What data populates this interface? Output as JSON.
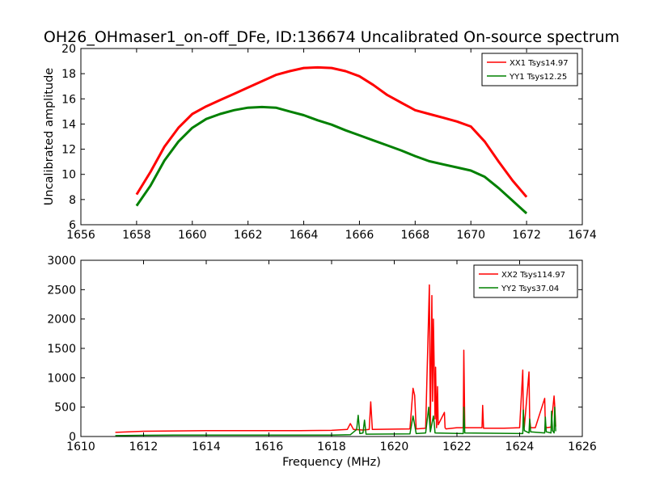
{
  "chart_data": [
    {
      "type": "line",
      "title": "OH26_OHmaser1_on-off_DFe, ID:136674 Uncalibrated On-source spectrum",
      "xlabel": "",
      "ylabel": "Uncalibrated amplitude",
      "xlim": [
        1656,
        1674
      ],
      "ylim": [
        6,
        20
      ],
      "xticks": [
        "1656",
        "1658",
        "1660",
        "1662",
        "1664",
        "1666",
        "1668",
        "1670",
        "1672",
        "1674"
      ],
      "yticks": [
        "6",
        "8",
        "10",
        "12",
        "14",
        "16",
        "18",
        "20"
      ],
      "grid": false,
      "legend_position": "top-right",
      "series": [
        {
          "name": "XX1 Tsys14.97",
          "color": "#ff0000",
          "x": [
            1658.0,
            1658.5,
            1659.0,
            1659.5,
            1660.0,
            1660.5,
            1661.0,
            1661.5,
            1662.0,
            1662.5,
            1663.0,
            1663.5,
            1664.0,
            1664.5,
            1665.0,
            1665.5,
            1666.0,
            1666.5,
            1667.0,
            1667.5,
            1668.0,
            1668.5,
            1669.0,
            1669.5,
            1670.0,
            1670.5,
            1671.0,
            1671.5,
            1672.0
          ],
          "y": [
            8.4,
            10.2,
            12.2,
            13.7,
            14.8,
            15.4,
            15.9,
            16.4,
            16.9,
            17.4,
            17.9,
            18.2,
            18.45,
            18.5,
            18.45,
            18.2,
            17.8,
            17.1,
            16.3,
            15.7,
            15.1,
            14.8,
            14.5,
            14.2,
            13.8,
            12.6,
            11.0,
            9.5,
            8.2
          ]
        },
        {
          "name": "YY1 Tsys12.25",
          "color": "#008000",
          "x": [
            1658.0,
            1658.5,
            1659.0,
            1659.5,
            1660.0,
            1660.5,
            1661.0,
            1661.5,
            1662.0,
            1662.5,
            1663.0,
            1663.5,
            1664.0,
            1664.5,
            1665.0,
            1665.5,
            1666.0,
            1666.5,
            1667.0,
            1667.5,
            1668.0,
            1668.5,
            1669.0,
            1669.5,
            1670.0,
            1670.5,
            1671.0,
            1671.5,
            1672.0
          ],
          "y": [
            7.5,
            9.1,
            11.1,
            12.6,
            13.7,
            14.4,
            14.8,
            15.1,
            15.3,
            15.35,
            15.3,
            15.0,
            14.7,
            14.3,
            13.95,
            13.5,
            13.1,
            12.7,
            12.3,
            11.9,
            11.45,
            11.05,
            10.8,
            10.55,
            10.3,
            9.8,
            8.9,
            7.9,
            6.9
          ]
        }
      ]
    },
    {
      "type": "line",
      "title": "",
      "xlabel": "Frequency (MHz)",
      "ylabel": "",
      "xlim": [
        1610,
        1626
      ],
      "ylim": [
        0,
        3000
      ],
      "xticks": [
        "1610",
        "1612",
        "1614",
        "1616",
        "1618",
        "1620",
        "1622",
        "1624",
        "1626"
      ],
      "yticks": [
        "0",
        "500",
        "1000",
        "1500",
        "2000",
        "2500",
        "3000"
      ],
      "grid": false,
      "legend_position": "top-right",
      "series": [
        {
          "name": "XX2 Tsys114.97",
          "color": "#ff0000",
          "x": [
            1611.1,
            1612.0,
            1613.0,
            1614.0,
            1615.0,
            1616.0,
            1617.0,
            1618.0,
            1618.5,
            1618.6,
            1618.7,
            1619.0,
            1619.2,
            1619.25,
            1619.3,
            1620.0,
            1620.5,
            1620.6,
            1620.65,
            1620.7,
            1621.0,
            1621.1,
            1621.12,
            1621.15,
            1621.2,
            1621.22,
            1621.25,
            1621.3,
            1621.32,
            1621.35,
            1621.38,
            1621.4,
            1621.6,
            1621.62,
            1621.65,
            1622.0,
            1622.2,
            1622.22,
            1622.25,
            1622.5,
            1622.8,
            1622.82,
            1622.85,
            1623.5,
            1624.0,
            1624.1,
            1624.12,
            1624.15,
            1624.3,
            1624.32,
            1624.35,
            1624.5,
            1624.8,
            1624.82,
            1624.85,
            1625.0,
            1625.1,
            1625.12,
            1625.15
          ],
          "y": [
            70,
            90,
            95,
            100,
            100,
            100,
            100,
            105,
            120,
            220,
            120,
            110,
            120,
            590,
            120,
            125,
            130,
            820,
            700,
            130,
            140,
            2150,
            2580,
            150,
            2400,
            600,
            2000,
            300,
            1180,
            150,
            850,
            200,
            410,
            150,
            130,
            150,
            150,
            1470,
            150,
            150,
            150,
            530,
            140,
            140,
            150,
            1130,
            380,
            160,
            1100,
            300,
            150,
            150,
            650,
            200,
            150,
            160,
            690,
            520,
            170
          ]
        },
        {
          "name": "YY2 Tsys37.04",
          "color": "#008000",
          "x": [
            1611.1,
            1612.0,
            1613.0,
            1614.0,
            1615.0,
            1616.0,
            1617.0,
            1618.0,
            1618.6,
            1618.8,
            1618.85,
            1618.9,
            1619.0,
            1619.05,
            1619.1,
            1620.5,
            1620.6,
            1620.65,
            1620.7,
            1621.0,
            1621.1,
            1621.12,
            1621.15,
            1621.25,
            1621.28,
            1621.3,
            1622.2,
            1622.22,
            1622.25,
            1624.1,
            1624.12,
            1624.15,
            1624.3,
            1624.32,
            1624.35,
            1624.8,
            1624.82,
            1624.85,
            1625.0,
            1625.02,
            1625.05,
            1625.1,
            1625.12,
            1625.15
          ],
          "y": [
            15,
            20,
            25,
            25,
            25,
            25,
            25,
            25,
            30,
            120,
            360,
            50,
            60,
            280,
            40,
            45,
            350,
            200,
            50,
            60,
            500,
            300,
            80,
            350,
            200,
            60,
            50,
            500,
            60,
            50,
            450,
            100,
            60,
            300,
            80,
            60,
            330,
            80,
            60,
            430,
            100,
            60,
            500,
            90
          ]
        }
      ]
    }
  ]
}
